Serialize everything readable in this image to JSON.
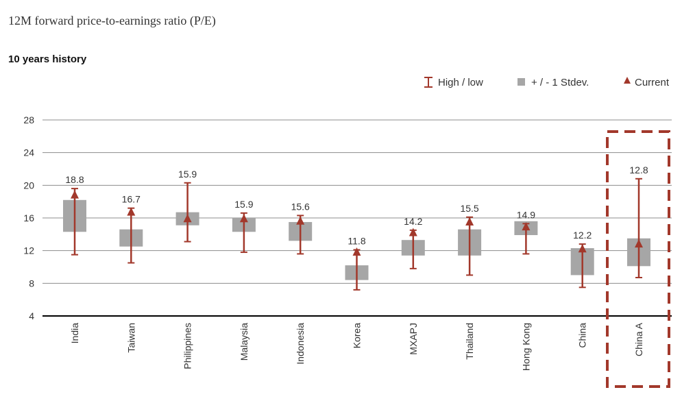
{
  "title": "12M forward price-to-earnings ratio (P/E)",
  "subtitle": "10 years history",
  "legend": {
    "high_low": "High / low",
    "stdev": "+ / - 1 Stdev.",
    "current": "Current"
  },
  "colors": {
    "accent": "#a2382b",
    "box": "#a6a6a6",
    "grid": "#8c8c8c",
    "axis": "#000000"
  },
  "chart_data": {
    "type": "box",
    "title": "12M forward price-to-earnings ratio (P/E)",
    "subtitle": "10 years history",
    "ylim": [
      4,
      28
    ],
    "yticks": [
      4,
      8,
      12,
      16,
      20,
      24,
      28
    ],
    "grid": true,
    "legend_position": "top-right",
    "categories": [
      "India",
      "Taiwan",
      "Philippines",
      "Malaysia",
      "Indonesia",
      "Korea",
      "MXAPJ",
      "Thailand",
      "Hong Kong",
      "China",
      "China A"
    ],
    "current": [
      18.8,
      16.7,
      15.9,
      15.9,
      15.6,
      11.8,
      14.2,
      15.5,
      14.9,
      12.2,
      12.8
    ],
    "current_labels": [
      "18.8",
      "16.7",
      "15.9",
      "15.9",
      "15.6",
      "11.8",
      "14.2",
      "15.5",
      "14.9",
      "12.2",
      "12.8"
    ],
    "high": [
      19.6,
      17.2,
      20.3,
      16.6,
      16.3,
      12.1,
      14.5,
      16.1,
      15.3,
      12.8,
      20.8
    ],
    "low": [
      11.5,
      10.5,
      13.1,
      11.8,
      11.6,
      7.2,
      9.8,
      9.0,
      11.6,
      7.5,
      8.7
    ],
    "stdev_upper": [
      18.2,
      14.6,
      16.7,
      16.0,
      15.5,
      10.2,
      13.3,
      14.6,
      15.6,
      12.3,
      13.5
    ],
    "stdev_lower": [
      14.3,
      12.5,
      15.1,
      14.3,
      13.2,
      8.4,
      11.4,
      11.4,
      13.9,
      9.0,
      10.1
    ],
    "highlighted": "China A"
  }
}
